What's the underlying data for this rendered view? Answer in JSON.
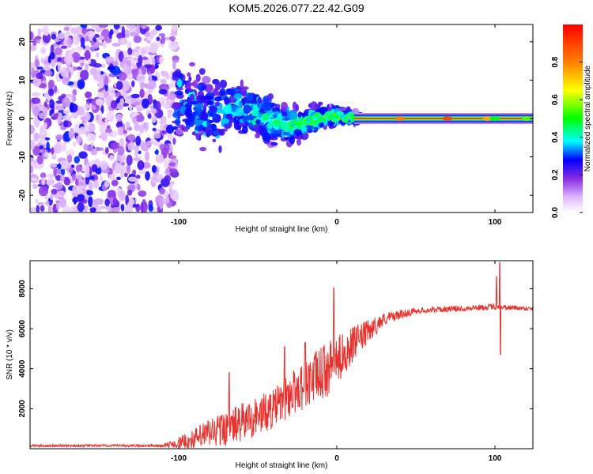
{
  "title": "KOM5.2026.077.22.42.G09",
  "chart_data": [
    {
      "type": "heatmap",
      "name": "spectrogram",
      "xlabel": "Height of straight line (km)",
      "ylabel": "Frequency (Hz)",
      "xlim": [
        -194,
        124
      ],
      "ylim": [
        -24.5,
        24.5
      ],
      "xticks": [
        -100,
        0,
        100
      ],
      "xtick_labels": [
        "-100",
        "0",
        "100"
      ],
      "yticks": [
        -20,
        -10,
        0,
        10,
        20
      ],
      "ytick_labels": [
        "-20",
        "-10",
        "0",
        "10",
        "20"
      ],
      "colorbar": {
        "label": "Normalized spectral amplitude",
        "range": [
          0,
          1
        ],
        "ticks": [
          0,
          0.2,
          0.4,
          0.6,
          0.8
        ],
        "tick_labels": [
          "0.0",
          "0.2",
          "0.4",
          "0.6",
          "0.8"
        ],
        "colormap": [
          "#ffffff",
          "#e0b8ff",
          "#8a2be2",
          "#0000ff",
          "#00ffff",
          "#00ff00",
          "#ffff00",
          "#ff8000",
          "#ff0000"
        ]
      },
      "features": {
        "noise_region_x": [
          -194,
          -102
        ],
        "noise_amplitude_range": [
          0.1,
          0.3
        ],
        "converging_region_x": [
          -102,
          15
        ],
        "line_region_x": [
          15,
          124
        ],
        "line_frequency_hz": 0,
        "line_amplitude": 0.95,
        "track_points": [
          {
            "x": -105,
            "f": 5
          },
          {
            "x": -90,
            "f": 3
          },
          {
            "x": -75,
            "f": 1
          },
          {
            "x": -60,
            "f": 3
          },
          {
            "x": -45,
            "f": 0
          },
          {
            "x": -30,
            "f": -2
          },
          {
            "x": -20,
            "f": -1
          },
          {
            "x": -10,
            "f": 0.5
          },
          {
            "x": 0,
            "f": 0.5
          },
          {
            "x": 10,
            "f": 0.3
          },
          {
            "x": 15,
            "f": 0
          }
        ]
      }
    },
    {
      "type": "line",
      "name": "snr",
      "xlabel": "Height of straight line (km)",
      "ylabel": "SNR (10 * v/v)",
      "xlim": [
        -194,
        124
      ],
      "ylim": [
        0,
        9400
      ],
      "xticks": [
        -100,
        0,
        100
      ],
      "xtick_labels": [
        "-100",
        "0",
        "100"
      ],
      "yticks": [
        2000,
        4000,
        6000,
        8000
      ],
      "ytick_labels": [
        "2000",
        "4000",
        "6000",
        "8000"
      ],
      "color": "#e8322e",
      "series": [
        {
          "name": "SNR",
          "envelope": [
            {
              "x": -194,
              "base": 150,
              "noise": 60
            },
            {
              "x": -110,
              "base": 150,
              "noise": 60
            },
            {
              "x": -92,
              "base": 400,
              "noise": 500
            },
            {
              "x": -80,
              "base": 800,
              "noise": 800
            },
            {
              "x": -60,
              "base": 1300,
              "noise": 1000
            },
            {
              "x": -40,
              "base": 2000,
              "noise": 1000
            },
            {
              "x": -25,
              "base": 3000,
              "noise": 1200
            },
            {
              "x": -5,
              "base": 4000,
              "noise": 1400
            },
            {
              "x": 10,
              "base": 5200,
              "noise": 900
            },
            {
              "x": 30,
              "base": 6500,
              "noise": 300
            },
            {
              "x": 50,
              "base": 6900,
              "noise": 150
            },
            {
              "x": 100,
              "base": 7100,
              "noise": 150
            },
            {
              "x": 124,
              "base": 7000,
              "noise": 100
            }
          ],
          "spikes": [
            {
              "x": -68,
              "y": 3800
            },
            {
              "x": -33,
              "y": 5100
            },
            {
              "x": -20,
              "y": 5300
            },
            {
              "x": -2,
              "y": 8050
            },
            {
              "x": 15,
              "y": 5800
            },
            {
              "x": 101,
              "y": 8600
            },
            {
              "x": 103,
              "y": 9300
            },
            {
              "x": 103.5,
              "y": 4700
            }
          ]
        }
      ]
    }
  ]
}
